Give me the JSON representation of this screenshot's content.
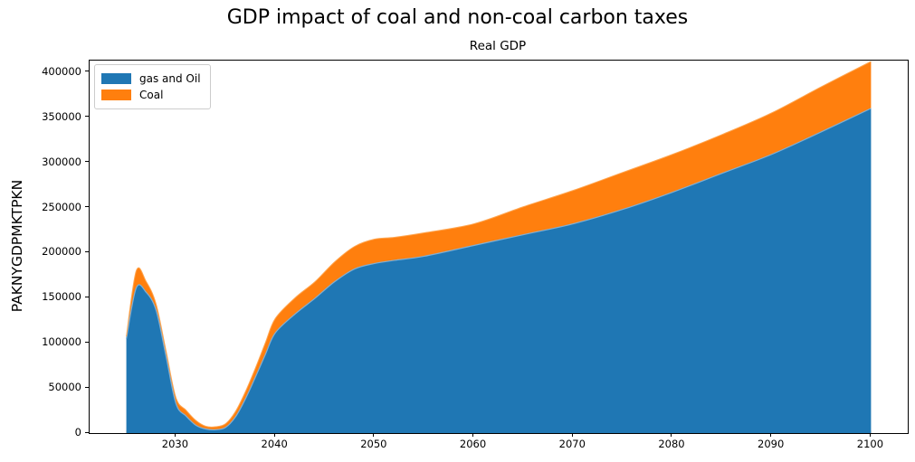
{
  "figure": {
    "title": "GDP impact of coal and non-coal carbon taxes",
    "axes_title": "Real GDP",
    "y_axis_label": "PAKNYGDPMKTPKN",
    "background_color": "#ffffff",
    "spine_color": "#000000"
  },
  "legend": {
    "position": "upper left",
    "items": [
      {
        "label": "gas and Oil",
        "color": "#1f77b4"
      },
      {
        "label": "Coal",
        "color": "#ff7f0e"
      }
    ]
  },
  "chart_data": {
    "type": "area",
    "stacked": true,
    "title": "Real GDP",
    "suptitle": "GDP impact of coal and non-coal carbon taxes",
    "xlabel": "",
    "ylabel": "PAKNYGDPMKTPKN",
    "grid": false,
    "legend_position": "upper left",
    "x_axis_range": [
      2021.3,
      2103.7
    ],
    "y_axis_range": [
      0,
      413000
    ],
    "x_ticks": [
      2030,
      2040,
      2050,
      2060,
      2070,
      2080,
      2090,
      2100
    ],
    "y_ticks": [
      0,
      50000,
      100000,
      150000,
      200000,
      250000,
      300000,
      350000,
      400000
    ],
    "x": [
      2025,
      2026,
      2027,
      2028,
      2029,
      2030,
      2031,
      2032,
      2033,
      2034,
      2035,
      2036,
      2037,
      2038,
      2039,
      2040,
      2042,
      2044,
      2046,
      2048,
      2050,
      2052,
      2055,
      2060,
      2065,
      2070,
      2075,
      2080,
      2085,
      2090,
      2095,
      2100
    ],
    "series": [
      {
        "name": "gas and Oil",
        "color": "#1f77b4",
        "edge_color": "#7fafd4",
        "values": [
          104500,
          161000,
          156000,
          136000,
          85000,
          32500,
          19000,
          8700,
          4500,
          3700,
          6300,
          18000,
          38000,
          62000,
          87000,
          111000,
          132000,
          149400,
          168000,
          182000,
          188000,
          191500,
          196000,
          208000,
          220000,
          232000,
          248000,
          267000,
          288000,
          309000,
          334000,
          360000
        ]
      },
      {
        "name": "Coal",
        "color": "#ff7f0e",
        "edge_color": "#ffa54f",
        "values": [
          2500,
          19000,
          12000,
          7000,
          6000,
          6500,
          6500,
          5300,
          3000,
          3300,
          4100,
          6000,
          8000,
          10000,
          13000,
          16000,
          18000,
          18400,
          22000,
          25000,
          27000,
          25500,
          26000,
          24000,
          31000,
          37000,
          41000,
          42000,
          43000,
          46000,
          50000,
          52000
        ]
      }
    ],
    "baseline_strip": {
      "color": "#ff7f0e",
      "value": 2800
    }
  }
}
